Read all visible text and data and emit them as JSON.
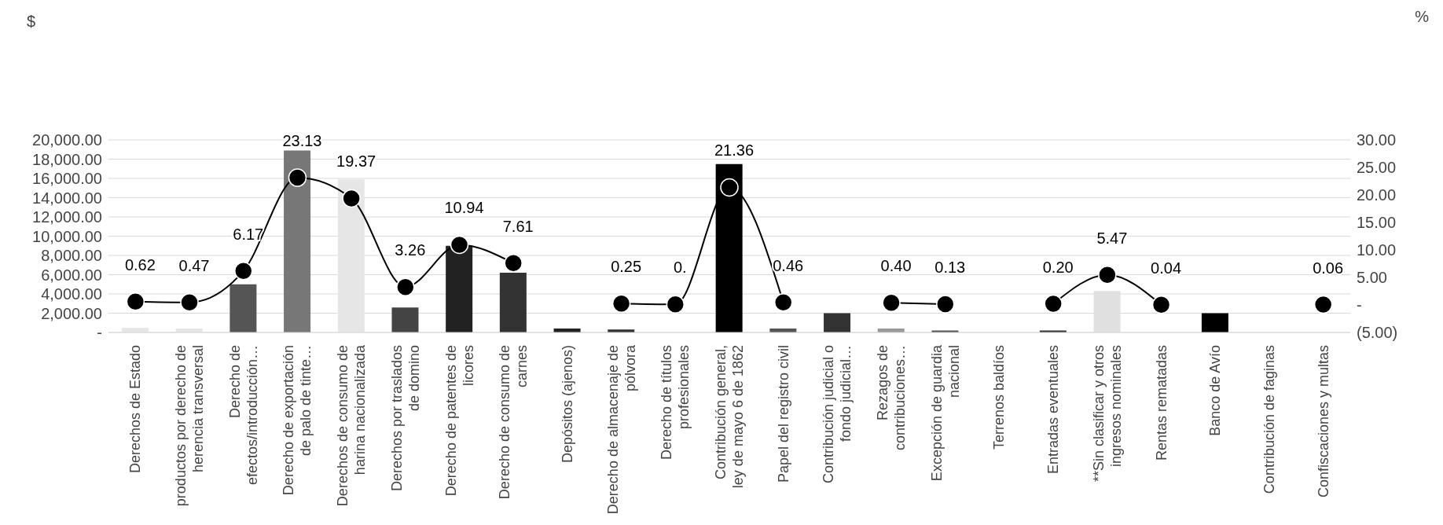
{
  "chart_data": {
    "type": "bar",
    "annotations": [
      "$",
      "%"
    ],
    "categories": [
      "Derechos de Estado",
      "productos por derecho de herencia transversal",
      "Derecho de efectos/introducción…",
      "Derecho de exportación de palo de tinte…",
      "Derechos de consumo de harina nacionalizada",
      "Derechos por traslados de domino",
      "Derecho de patentes de licores",
      "Derecho de consumo de carnes",
      "Depósitos (ajenos)",
      "Derecho de almacenaje de pólvora",
      "Derecho de títulos profesionales",
      "Contribución general, ley de mayo 6 de 1862",
      "Papel del registro civil",
      "Contribución judicial o fondo judicial…",
      "Rezagos de contribuciones…",
      "Excepción de guardia nacional",
      "Terrenos baldíos",
      "Entradas eventuales",
      "**Sin clasificar y otros ingresos nominales",
      "Rentas rematadas",
      "Banco de Avío",
      "Contribución de faginas",
      "Confiscaciones y multas"
    ],
    "series": [
      {
        "values": [
          500,
          400,
          5000,
          18900,
          15900,
          2600,
          9000,
          6200,
          400,
          300,
          null,
          17500,
          400,
          2000,
          400,
          200,
          null,
          200,
          4300,
          null,
          2000,
          null,
          null
        ],
        "colors": [
          "#e6e6e6",
          "#e6e6e6",
          "#555555",
          "#777777",
          "#e6e6e6",
          "#444444",
          "#222222",
          "#333333",
          "#222222",
          "#333333",
          "#000000",
          "#000000",
          "#555555",
          "#333333",
          "#999999",
          "#555555",
          "#000000",
          "#333333",
          "#e0e0e0",
          "#000000",
          "#000000",
          "#000000",
          "#000000"
        ]
      },
      {
        "type": "line",
        "axis": "y2",
        "color": "#000000",
        "marker": "circle",
        "values": [
          0.62,
          0.47,
          6.17,
          23.13,
          19.37,
          3.26,
          10.94,
          7.61,
          null,
          0.25,
          0.1,
          21.36,
          0.46,
          null,
          0.4,
          0.13,
          null,
          0.2,
          5.47,
          0.04,
          null,
          null,
          0.06
        ],
        "value_labels": [
          "0.62",
          "0.47",
          "6.17",
          "23.13",
          "19.37",
          "3.26",
          "10.94",
          "7.61",
          null,
          "0.25",
          "0.",
          "21.36",
          "0.46",
          null,
          "0.40",
          "0.13",
          null,
          "0.20",
          "5.47",
          "0.04",
          null,
          null,
          "0.06"
        ]
      }
    ],
    "ylim": [
      0,
      20000
    ],
    "yticks": [
      {
        "value": 0,
        "label": "-"
      },
      {
        "value": 2000,
        "label": "2,000.00"
      },
      {
        "value": 4000,
        "label": "4,000.00"
      },
      {
        "value": 6000,
        "label": "6,000.00"
      },
      {
        "value": 8000,
        "label": "8,000.00"
      },
      {
        "value": 10000,
        "label": "10,000.00"
      },
      {
        "value": 12000,
        "label": "12,000.00"
      },
      {
        "value": 14000,
        "label": "14,000.00"
      },
      {
        "value": 16000,
        "label": "16,000.00"
      },
      {
        "value": 18000,
        "label": "18,000.00"
      },
      {
        "value": 20000,
        "label": "20,000.00"
      }
    ],
    "y2lim": [
      -5,
      30
    ],
    "y2ticks": [
      {
        "value": -5,
        "label": "(5.00)"
      },
      {
        "value": 0,
        "label": "-"
      },
      {
        "value": 5,
        "label": "5.00"
      },
      {
        "value": 10,
        "label": "10.00"
      },
      {
        "value": 15,
        "label": "15.00"
      },
      {
        "value": 20,
        "label": "20.00"
      },
      {
        "value": 25,
        "label": "25.00"
      },
      {
        "value": 30,
        "label": "30.00"
      }
    ],
    "grid": "y",
    "legend": false
  }
}
